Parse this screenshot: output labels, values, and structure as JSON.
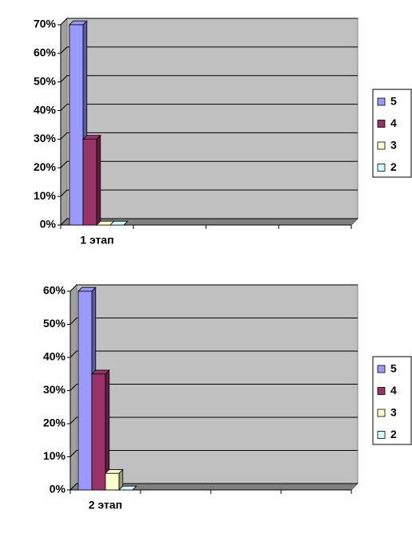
{
  "chart_data": [
    {
      "type": "bar3d",
      "categories": [
        "1 этап",
        null,
        null,
        null
      ],
      "series": [
        {
          "name": "5",
          "color": "#9999ff",
          "values": [
            70,
            null,
            null,
            null
          ]
        },
        {
          "name": "4",
          "color": "#993366",
          "values": [
            30,
            null,
            null,
            null
          ]
        },
        {
          "name": "3",
          "color": "#ffffcc",
          "values": [
            0,
            null,
            null,
            null
          ]
        },
        {
          "name": "2",
          "color": "#ccffff",
          "values": [
            0,
            null,
            null,
            null
          ]
        }
      ],
      "ylim": [
        0,
        70
      ],
      "yticks": [
        {
          "value": 0,
          "label": "0%"
        },
        {
          "value": 10,
          "label": "10%"
        },
        {
          "value": 20,
          "label": "20%"
        },
        {
          "value": 30,
          "label": "30%"
        },
        {
          "value": 40,
          "label": "40%"
        },
        {
          "value": 50,
          "label": "50%"
        },
        {
          "value": 60,
          "label": "60%"
        },
        {
          "value": 70,
          "label": "70%"
        }
      ],
      "grid": true,
      "legend": "right"
    },
    {
      "type": "bar3d",
      "categories": [
        "2 этап",
        null,
        null,
        null
      ],
      "series": [
        {
          "name": "5",
          "color": "#9999ff",
          "values": [
            60,
            null,
            null,
            null
          ]
        },
        {
          "name": "4",
          "color": "#993366",
          "values": [
            35,
            null,
            null,
            null
          ]
        },
        {
          "name": "3",
          "color": "#ffffcc",
          "values": [
            5,
            null,
            null,
            null
          ]
        },
        {
          "name": "2",
          "color": "#ccffff",
          "values": [
            0,
            null,
            null,
            null
          ]
        }
      ],
      "ylim": [
        0,
        60
      ],
      "yticks": [
        {
          "value": 0,
          "label": "0%"
        },
        {
          "value": 10,
          "label": "10%"
        },
        {
          "value": 20,
          "label": "20%"
        },
        {
          "value": 30,
          "label": "30%"
        },
        {
          "value": 40,
          "label": "40%"
        },
        {
          "value": 50,
          "label": "50%"
        },
        {
          "value": 60,
          "label": "60%"
        }
      ],
      "grid": true,
      "legend": "right"
    }
  ]
}
